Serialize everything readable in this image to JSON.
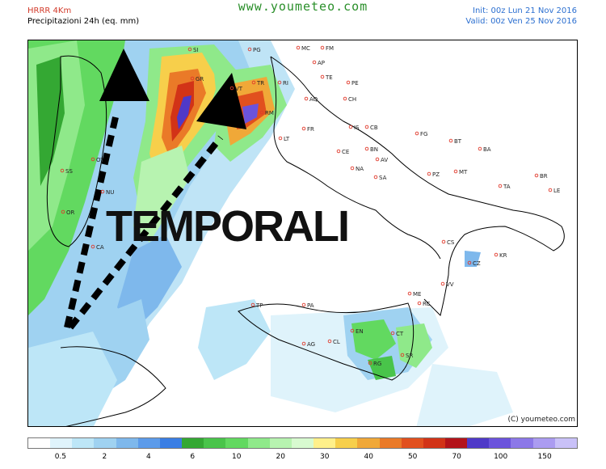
{
  "header": {
    "model": "HRRR 4Km",
    "product": "Precipitazioni 24h (eq. mm)",
    "site": "www.youmeteo.com",
    "init": "Init: 00z Lun   21 Nov 2016",
    "valid": "Valid: 00z Ven   25 Nov 2016"
  },
  "overlay_text": "TEMPORALI",
  "copyright": "(C) youmeteo.com",
  "cities": [
    "MC",
    "FM",
    "AP",
    "TE",
    "PE",
    "CH",
    "AQ",
    "RI",
    "TR",
    "PG",
    "SI",
    "GR",
    "VT",
    "RM",
    "LT",
    "FR",
    "IS",
    "CB",
    "CE",
    "BN",
    "AV",
    "NA",
    "SA",
    "FG",
    "BT",
    "BA",
    "PZ",
    "MT",
    "TA",
    "BR",
    "LE",
    "CS",
    "KR",
    "CZ",
    "VV",
    "RC",
    "ME",
    "TP",
    "PA",
    "AG",
    "CL",
    "EN",
    "CT",
    "SR",
    "RG",
    "SS",
    "OT",
    "NU",
    "OR",
    "CA"
  ],
  "legend": {
    "ticks": [
      "0.5",
      "2",
      "4",
      "6",
      "10",
      "20",
      "30",
      "40",
      "50",
      "70",
      "100",
      "150"
    ],
    "colors": [
      "#ffffff",
      "#dff3fb",
      "#bde6f7",
      "#9fd2f1",
      "#7eb8ec",
      "#5c9bea",
      "#3a7ee4",
      "#34a833",
      "#49c44a",
      "#62d960",
      "#8fe98a",
      "#b7f3b0",
      "#d8fad0",
      "#fff08a",
      "#f7cf4b",
      "#f0a838",
      "#ea7a28",
      "#e1501e",
      "#d23317",
      "#b3131a",
      "#4f39c8",
      "#6b53dc",
      "#8c78e8",
      "#ab9cf1",
      "#c9c1f8"
    ]
  }
}
